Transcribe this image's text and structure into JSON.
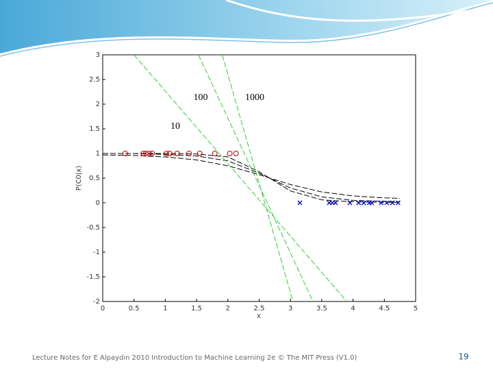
{
  "chart_data": {
    "type": "line",
    "xlabel": "x",
    "ylabel": "P(C0|x)",
    "xlim": [
      0,
      5
    ],
    "ylim": [
      -2,
      3
    ],
    "xticks": [
      0,
      0.5,
      1,
      1.5,
      2,
      2.5,
      3,
      3.5,
      4,
      4.5,
      5
    ],
    "yticks": [
      -2,
      -1.5,
      -1,
      -0.5,
      0,
      0.5,
      1,
      1.5,
      2,
      2.5,
      3
    ],
    "annotations": [
      "100",
      "1000",
      "10"
    ],
    "series": [
      {
        "color": "#000000",
        "dashed": true,
        "x": [
          0,
          0.5,
          1,
          1.5,
          2,
          2.5,
          3,
          3.5,
          4,
          4.5,
          4.75
        ],
        "values": [
          1,
          1,
          1,
          0.99,
          0.93,
          0.63,
          0.24,
          0.06,
          0.02,
          0.01,
          0.01
        ]
      },
      {
        "color": "#000000",
        "dashed": true,
        "x": [
          0,
          0.5,
          1,
          1.5,
          2,
          2.5,
          3,
          3.5,
          4,
          4.5,
          4.75
        ],
        "values": [
          1,
          1,
          0.98,
          0.95,
          0.85,
          0.6,
          0.3,
          0.12,
          0.05,
          0.03,
          0.02
        ]
      },
      {
        "color": "#000000",
        "dashed": true,
        "x": [
          0,
          0.5,
          1,
          1.5,
          2,
          2.5,
          3,
          3.5,
          4,
          4.5,
          4.75
        ],
        "values": [
          0.97,
          0.96,
          0.93,
          0.87,
          0.75,
          0.57,
          0.37,
          0.22,
          0.14,
          0.1,
          0.09
        ]
      },
      {
        "color": "#33cc33",
        "dashed": true,
        "x": [
          0.5,
          3.9
        ],
        "values": [
          3,
          -2
        ]
      },
      {
        "color": "#33cc33",
        "dashed": true,
        "x": [
          1.53,
          3.36
        ],
        "values": [
          3,
          -2
        ]
      },
      {
        "color": "#33cc33",
        "dashed": true,
        "x": [
          1.91,
          3.04
        ],
        "values": [
          3,
          -2
        ]
      },
      {
        "color": "#c00000",
        "marker": "o",
        "x": [
          0.36,
          0.65,
          0.69,
          0.74,
          0.79,
          1.02,
          1.07,
          1.19,
          1.38,
          1.55,
          1.79,
          2.03,
          2.13
        ],
        "values": [
          1,
          1,
          1,
          1,
          1,
          1,
          1,
          1,
          1,
          1,
          1,
          1,
          1
        ]
      },
      {
        "color": "#0000cc",
        "marker": "x",
        "x": [
          3.15,
          3.62,
          3.67,
          3.72,
          3.95,
          4.09,
          4.17,
          4.26,
          4.3,
          4.45,
          4.54,
          4.63,
          4.72
        ],
        "values": [
          0,
          0,
          0,
          0,
          0,
          0,
          0,
          0,
          0,
          0,
          0,
          0,
          0
        ]
      }
    ]
  },
  "footer": {
    "text": "Lecture Notes for E Alpaydın 2010 Introduction to Machine Learning 2e © The MIT Press (V1.0)",
    "page_number": 19
  }
}
